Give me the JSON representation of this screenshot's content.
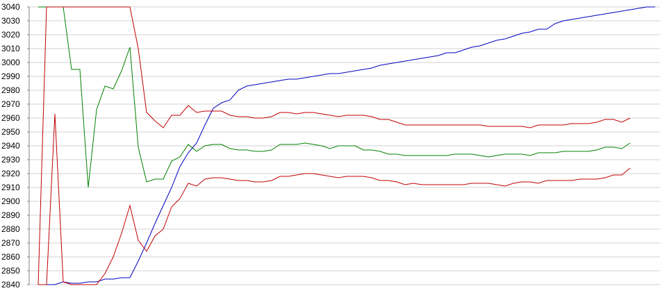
{
  "chart_data": {
    "type": "line",
    "title": "",
    "xlabel": "",
    "ylabel": "",
    "ylim": [
      2840,
      3040
    ],
    "yticks": [
      2840,
      2850,
      2860,
      2870,
      2880,
      2890,
      2900,
      2910,
      2920,
      2930,
      2940,
      2950,
      2960,
      2970,
      2980,
      2990,
      3000,
      3010,
      3020,
      3030,
      3040
    ],
    "grid": true,
    "legend": "none",
    "series": [
      {
        "color": "#0000c0",
        "points": [
          [
            0,
            2840
          ],
          [
            12,
            2840
          ],
          [
            24,
            2840
          ],
          [
            36,
            2842
          ],
          [
            48,
            2841
          ],
          [
            60,
            2841
          ],
          [
            72,
            2842
          ],
          [
            84,
            2842
          ],
          [
            96,
            2844
          ],
          [
            108,
            2844
          ],
          [
            120,
            2845
          ],
          [
            132,
            2845
          ],
          [
            144,
            2857
          ],
          [
            156,
            2870
          ],
          [
            168,
            2884
          ],
          [
            180,
            2897
          ],
          [
            192,
            2910
          ],
          [
            204,
            2925
          ],
          [
            216,
            2935
          ],
          [
            228,
            2942
          ],
          [
            240,
            2955
          ],
          [
            252,
            2967
          ],
          [
            264,
            2971
          ],
          [
            276,
            2973
          ],
          [
            288,
            2980
          ],
          [
            300,
            2983
          ],
          [
            312,
            2984
          ],
          [
            324,
            2985
          ],
          [
            336,
            2986
          ],
          [
            348,
            2987
          ],
          [
            360,
            2988
          ],
          [
            372,
            2988
          ],
          [
            384,
            2989
          ],
          [
            396,
            2990
          ],
          [
            408,
            2991
          ],
          [
            420,
            2992
          ],
          [
            432,
            2992
          ],
          [
            444,
            2993
          ],
          [
            456,
            2994
          ],
          [
            468,
            2995
          ],
          [
            480,
            2996
          ],
          [
            492,
            2998
          ],
          [
            504,
            2999
          ],
          [
            516,
            3000
          ],
          [
            528,
            3001
          ],
          [
            540,
            3002
          ],
          [
            552,
            3003
          ],
          [
            564,
            3004
          ],
          [
            576,
            3005
          ],
          [
            588,
            3007
          ],
          [
            600,
            3007
          ],
          [
            612,
            3009
          ],
          [
            624,
            3011
          ],
          [
            636,
            3012
          ],
          [
            648,
            3014
          ],
          [
            660,
            3016
          ],
          [
            672,
            3017
          ],
          [
            684,
            3019
          ],
          [
            696,
            3021
          ],
          [
            708,
            3022
          ],
          [
            720,
            3024
          ],
          [
            732,
            3024
          ],
          [
            744,
            3028
          ],
          [
            756,
            3030
          ],
          [
            768,
            3031
          ],
          [
            780,
            3032
          ],
          [
            792,
            3033
          ],
          [
            804,
            3034
          ],
          [
            816,
            3035
          ],
          [
            828,
            3036
          ],
          [
            840,
            3037
          ],
          [
            852,
            3038
          ],
          [
            864,
            3039
          ],
          [
            876,
            3040
          ],
          [
            888,
            3040
          ]
        ]
      },
      {
        "color": "#008000",
        "points": [
          [
            0,
            3040
          ],
          [
            12,
            3040
          ],
          [
            24,
            3040
          ],
          [
            36,
            3040
          ],
          [
            48,
            2995
          ],
          [
            60,
            2995
          ],
          [
            72,
            2910
          ],
          [
            84,
            2966
          ],
          [
            96,
            2983
          ],
          [
            108,
            2981
          ],
          [
            120,
            2994
          ],
          [
            132,
            3011
          ],
          [
            144,
            2939
          ],
          [
            156,
            2914
          ],
          [
            168,
            2916
          ],
          [
            180,
            2916
          ],
          [
            192,
            2929
          ],
          [
            204,
            2932
          ],
          [
            216,
            2941
          ],
          [
            228,
            2936
          ],
          [
            240,
            2940
          ],
          [
            252,
            2941
          ],
          [
            264,
            2941
          ],
          [
            276,
            2938
          ],
          [
            288,
            2937
          ],
          [
            300,
            2937
          ],
          [
            312,
            2936
          ],
          [
            324,
            2936
          ],
          [
            336,
            2937
          ],
          [
            348,
            2941
          ],
          [
            360,
            2941
          ],
          [
            372,
            2941
          ],
          [
            384,
            2942
          ],
          [
            396,
            2941
          ],
          [
            408,
            2940
          ],
          [
            420,
            2938
          ],
          [
            432,
            2940
          ],
          [
            444,
            2940
          ],
          [
            456,
            2940
          ],
          [
            468,
            2937
          ],
          [
            480,
            2937
          ],
          [
            492,
            2936
          ],
          [
            504,
            2934
          ],
          [
            516,
            2934
          ],
          [
            528,
            2933
          ],
          [
            540,
            2933
          ],
          [
            552,
            2933
          ],
          [
            564,
            2933
          ],
          [
            576,
            2933
          ],
          [
            588,
            2933
          ],
          [
            600,
            2934
          ],
          [
            612,
            2934
          ],
          [
            624,
            2934
          ],
          [
            636,
            2933
          ],
          [
            648,
            2932
          ],
          [
            660,
            2933
          ],
          [
            672,
            2934
          ],
          [
            684,
            2934
          ],
          [
            696,
            2934
          ],
          [
            708,
            2933
          ],
          [
            720,
            2935
          ],
          [
            732,
            2935
          ],
          [
            744,
            2935
          ],
          [
            756,
            2936
          ],
          [
            768,
            2936
          ],
          [
            780,
            2936
          ],
          [
            792,
            2936
          ],
          [
            804,
            2937
          ],
          [
            816,
            2939
          ],
          [
            828,
            2939
          ],
          [
            840,
            2938
          ],
          [
            852,
            2942
          ]
        ]
      },
      {
        "color": "#c00000",
        "points": [
          [
            0,
            2840
          ],
          [
            12,
            3040
          ],
          [
            24,
            3040
          ],
          [
            36,
            3040
          ],
          [
            48,
            3040
          ],
          [
            60,
            3040
          ],
          [
            72,
            3040
          ],
          [
            84,
            3040
          ],
          [
            96,
            3040
          ],
          [
            108,
            3040
          ],
          [
            120,
            3040
          ],
          [
            132,
            3040
          ],
          [
            144,
            3010
          ],
          [
            156,
            2964
          ],
          [
            168,
            2958
          ],
          [
            180,
            2953
          ],
          [
            192,
            2962
          ],
          [
            204,
            2962
          ],
          [
            216,
            2969
          ],
          [
            228,
            2964
          ],
          [
            240,
            2965
          ],
          [
            252,
            2965
          ],
          [
            264,
            2965
          ],
          [
            276,
            2962
          ],
          [
            288,
            2961
          ],
          [
            300,
            2961
          ],
          [
            312,
            2960
          ],
          [
            324,
            2960
          ],
          [
            336,
            2961
          ],
          [
            348,
            2964
          ],
          [
            360,
            2964
          ],
          [
            372,
            2963
          ],
          [
            384,
            2964
          ],
          [
            396,
            2964
          ],
          [
            408,
            2963
          ],
          [
            420,
            2962
          ],
          [
            432,
            2961
          ],
          [
            444,
            2962
          ],
          [
            456,
            2962
          ],
          [
            468,
            2962
          ],
          [
            480,
            2961
          ],
          [
            492,
            2959
          ],
          [
            504,
            2959
          ],
          [
            516,
            2957
          ],
          [
            528,
            2955
          ],
          [
            540,
            2955
          ],
          [
            552,
            2955
          ],
          [
            564,
            2955
          ],
          [
            576,
            2955
          ],
          [
            588,
            2955
          ],
          [
            600,
            2955
          ],
          [
            612,
            2955
          ],
          [
            624,
            2955
          ],
          [
            636,
            2955
          ],
          [
            648,
            2954
          ],
          [
            660,
            2954
          ],
          [
            672,
            2954
          ],
          [
            684,
            2954
          ],
          [
            696,
            2954
          ],
          [
            708,
            2953
          ],
          [
            720,
            2955
          ],
          [
            732,
            2955
          ],
          [
            744,
            2955
          ],
          [
            756,
            2955
          ],
          [
            768,
            2956
          ],
          [
            780,
            2956
          ],
          [
            792,
            2956
          ],
          [
            804,
            2957
          ],
          [
            816,
            2959
          ],
          [
            828,
            2959
          ],
          [
            840,
            2957
          ],
          [
            852,
            2960
          ]
        ]
      },
      {
        "color": "#c00000",
        "points": [
          [
            0,
            2840
          ],
          [
            12,
            2840
          ],
          [
            24,
            2963
          ],
          [
            36,
            2842
          ],
          [
            48,
            2840
          ],
          [
            60,
            2840
          ],
          [
            72,
            2840
          ],
          [
            84,
            2840
          ],
          [
            96,
            2848
          ],
          [
            108,
            2860
          ],
          [
            120,
            2877
          ],
          [
            132,
            2897
          ],
          [
            144,
            2872
          ],
          [
            156,
            2864
          ],
          [
            168,
            2875
          ],
          [
            180,
            2880
          ],
          [
            192,
            2896
          ],
          [
            204,
            2902
          ],
          [
            216,
            2913
          ],
          [
            228,
            2911
          ],
          [
            240,
            2916
          ],
          [
            252,
            2917
          ],
          [
            264,
            2917
          ],
          [
            276,
            2916
          ],
          [
            288,
            2915
          ],
          [
            300,
            2915
          ],
          [
            312,
            2914
          ],
          [
            324,
            2914
          ],
          [
            336,
            2915
          ],
          [
            348,
            2918
          ],
          [
            360,
            2918
          ],
          [
            372,
            2919
          ],
          [
            384,
            2920
          ],
          [
            396,
            2920
          ],
          [
            408,
            2919
          ],
          [
            420,
            2918
          ],
          [
            432,
            2917
          ],
          [
            444,
            2918
          ],
          [
            456,
            2918
          ],
          [
            468,
            2918
          ],
          [
            480,
            2917
          ],
          [
            492,
            2915
          ],
          [
            504,
            2915
          ],
          [
            516,
            2914
          ],
          [
            528,
            2912
          ],
          [
            540,
            2913
          ],
          [
            552,
            2912
          ],
          [
            564,
            2912
          ],
          [
            576,
            2912
          ],
          [
            588,
            2912
          ],
          [
            600,
            2912
          ],
          [
            612,
            2912
          ],
          [
            624,
            2913
          ],
          [
            636,
            2913
          ],
          [
            648,
            2913
          ],
          [
            660,
            2912
          ],
          [
            672,
            2911
          ],
          [
            684,
            2913
          ],
          [
            696,
            2914
          ],
          [
            708,
            2914
          ],
          [
            720,
            2913
          ],
          [
            732,
            2915
          ],
          [
            744,
            2915
          ],
          [
            756,
            2915
          ],
          [
            768,
            2915
          ],
          [
            780,
            2916
          ],
          [
            792,
            2916
          ],
          [
            804,
            2916
          ],
          [
            816,
            2917
          ],
          [
            828,
            2919
          ],
          [
            840,
            2919
          ],
          [
            852,
            2924
          ]
        ]
      }
    ]
  }
}
